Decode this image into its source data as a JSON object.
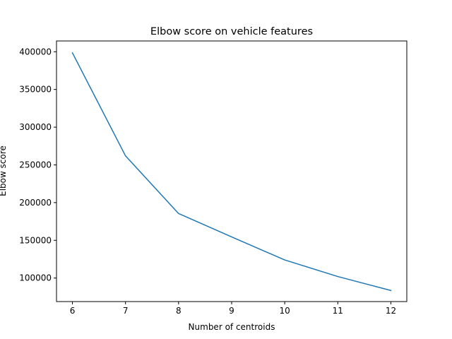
{
  "chart_data": {
    "type": "line",
    "title": "Elbow score on vehicle features",
    "xlabel": "Number of centroids",
    "ylabel": "Elbow score",
    "x": [
      6,
      7,
      8,
      9,
      10,
      11,
      12
    ],
    "series": [
      {
        "values": [
          398500,
          262000,
          185500,
          154500,
          124000,
          102000,
          83500
        ],
        "color": "#1f77b4"
      }
    ],
    "xlim": [
      5.7,
      12.3
    ],
    "ylim": [
      68800,
      414300
    ],
    "xticks": [
      6,
      7,
      8,
      9,
      10,
      11,
      12
    ],
    "xtick_labels": [
      "6",
      "7",
      "8",
      "9",
      "10",
      "11",
      "12"
    ],
    "yticks": [
      100000,
      150000,
      200000,
      250000,
      300000,
      350000,
      400000
    ],
    "ytick_labels": [
      "100000",
      "150000",
      "200000",
      "250000",
      "300000",
      "350000",
      "400000"
    ],
    "grid": false,
    "legend": false
  }
}
